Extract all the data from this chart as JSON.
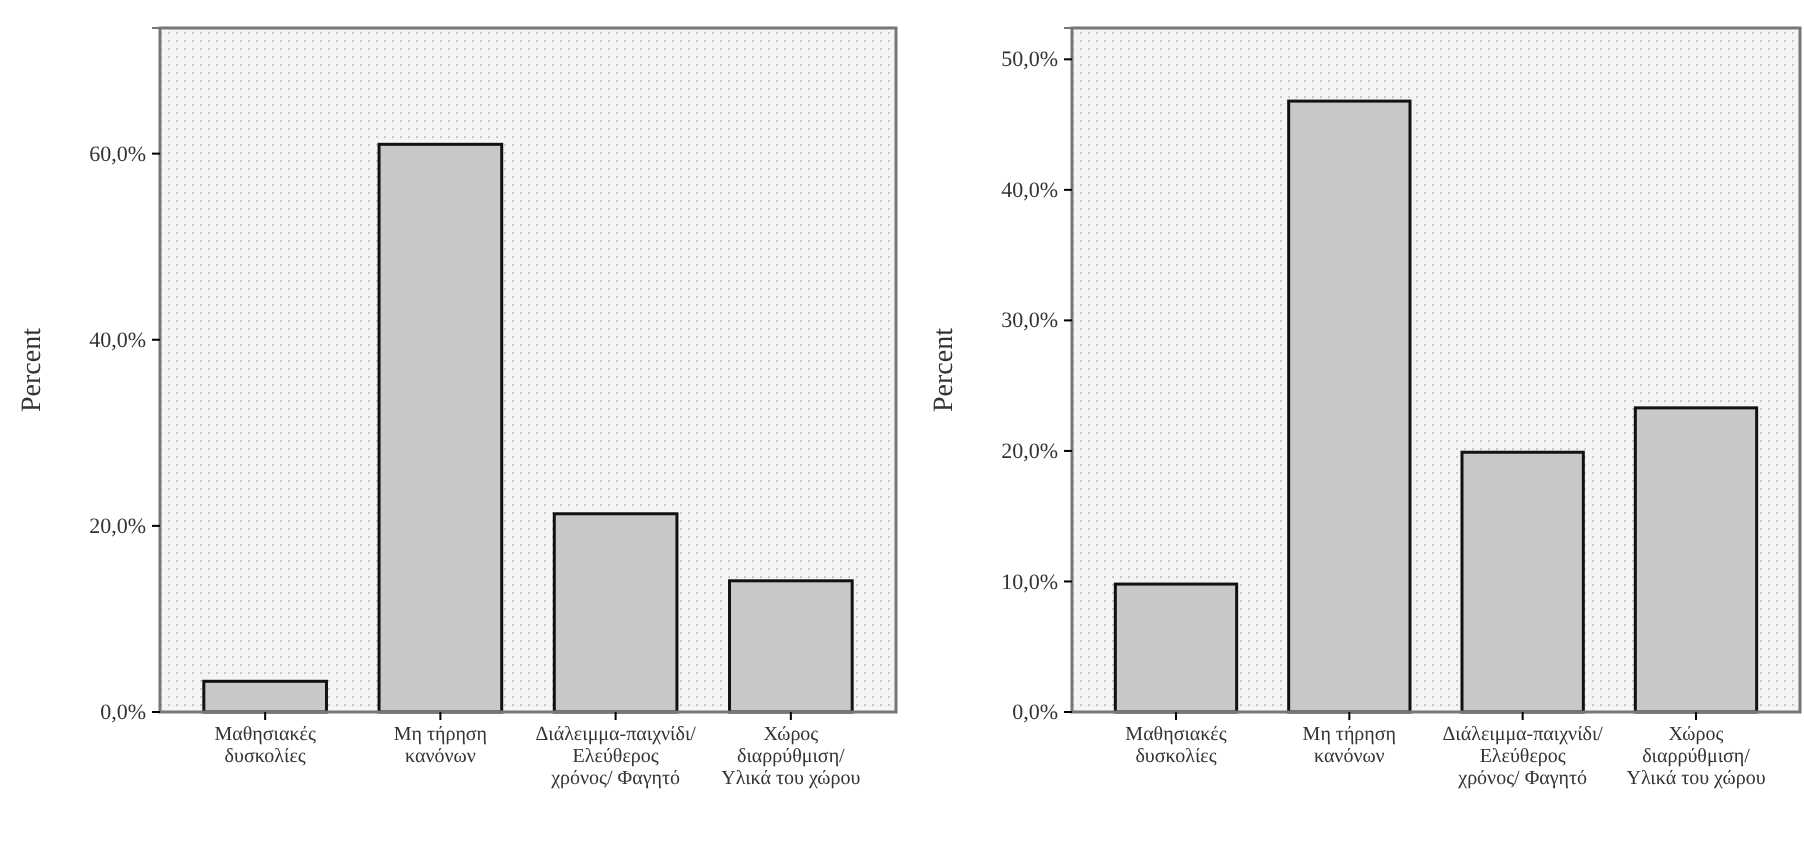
{
  "chart_data": [
    {
      "type": "bar",
      "ylabel": "Percent",
      "categories": [
        "Μαθησιακές δυσκολίες",
        "Μη τήρηση κανόνων",
        "Διάλειμμα-παιχνίδι/ Ελεύθερος χρόνος/ Φαγητό",
        "Χώρος διαρρύθμιση/ Υλικά του χώρου"
      ],
      "values": [
        3.3,
        61.0,
        21.3,
        14.1
      ],
      "color": "#c8c8c8",
      "ylim": [
        0,
        73.5
      ],
      "yticks": [
        {
          "value": 0,
          "label": "0,0%"
        },
        {
          "value": 20,
          "label": "20,0%"
        },
        {
          "value": 40,
          "label": "40,0%"
        },
        {
          "value": 60,
          "label": "60,0%"
        }
      ]
    },
    {
      "type": "bar",
      "ylabel": "Percent",
      "categories": [
        "Μαθησιακές δυσκολίες",
        "Μη τήρηση κανόνων",
        "Διάλειμμα-παιχνίδι/ Ελεύθερος χρόνος/ Φαγητό",
        "Χώρος διαρρύθμιση/ Υλικά του χώρου"
      ],
      "values": [
        9.8,
        46.8,
        19.9,
        23.3
      ],
      "color": "#c8c8c8",
      "ylim": [
        0,
        52.4
      ],
      "yticks": [
        {
          "value": 0,
          "label": "0,0%"
        },
        {
          "value": 10,
          "label": "10,0%"
        },
        {
          "value": 20,
          "label": "20,0%"
        },
        {
          "value": 30,
          "label": "30,0%"
        },
        {
          "value": 40,
          "label": "40,0%"
        },
        {
          "value": 50,
          "label": "50,0%"
        }
      ]
    }
  ]
}
